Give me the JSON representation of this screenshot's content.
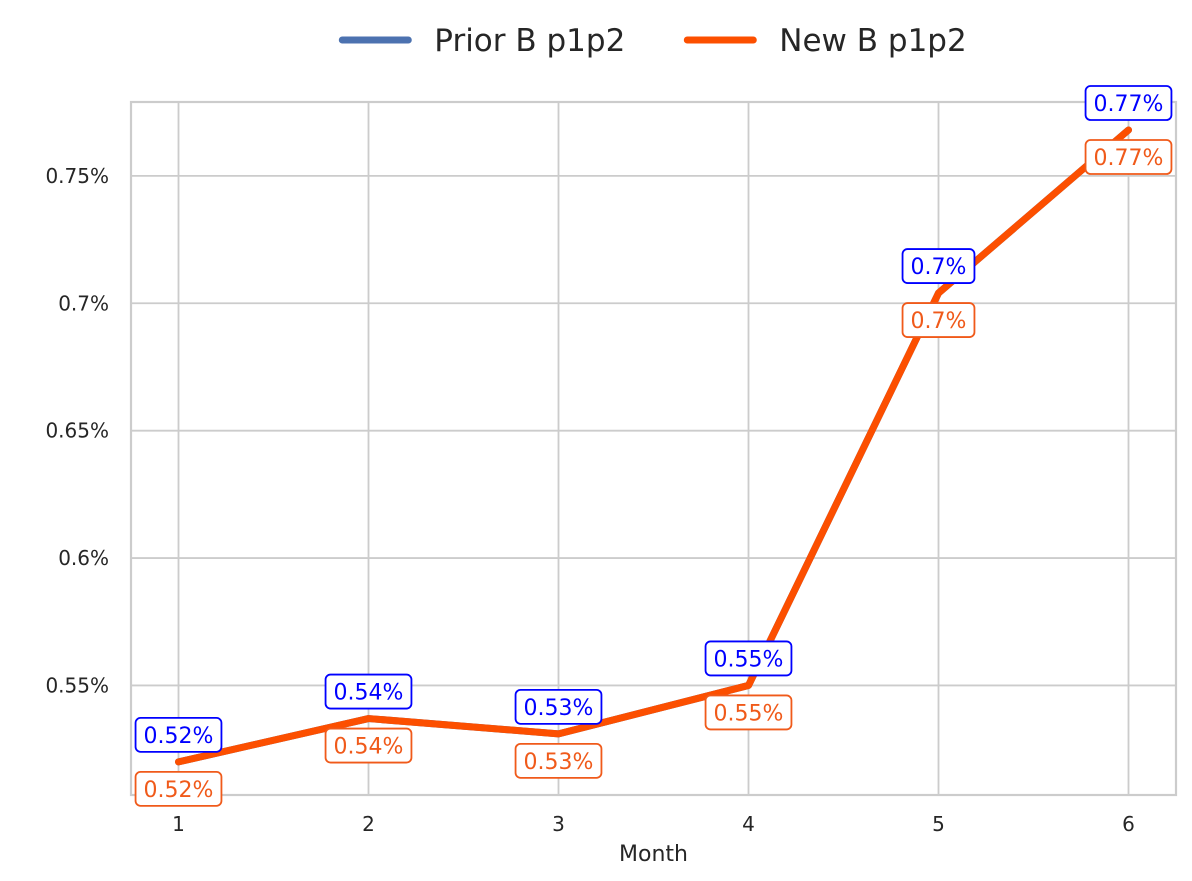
{
  "chart_data": {
    "type": "line",
    "title": "",
    "xlabel": "Month",
    "ylabel": "",
    "x": [
      1,
      2,
      3,
      4,
      5,
      6
    ],
    "x_tick_labels": [
      "1",
      "2",
      "3",
      "4",
      "5",
      "6"
    ],
    "y_ticks": [
      0.55,
      0.6,
      0.65,
      0.7,
      0.75
    ],
    "y_tick_labels": [
      "0.55%",
      "0.6%",
      "0.65%",
      "0.7%",
      "0.75%"
    ],
    "xlim": [
      0.75,
      6.25
    ],
    "ylim": [
      0.507,
      0.779
    ],
    "grid": true,
    "legend_position": "top-center",
    "series": [
      {
        "name": "Prior B p1p2",
        "values": [
          0.52,
          0.537,
          0.531,
          0.55,
          0.704,
          0.768
        ],
        "labels": [
          "0.52%",
          "0.54%",
          "0.53%",
          "0.55%",
          "0.7%",
          "0.77%"
        ],
        "color": "#4c72b0",
        "label_color": "#0000ff",
        "label_side": "above"
      },
      {
        "name": "New B p1p2",
        "values": [
          0.52,
          0.537,
          0.531,
          0.55,
          0.704,
          0.768
        ],
        "labels": [
          "0.52%",
          "0.54%",
          "0.53%",
          "0.55%",
          "0.7%",
          "0.77%"
        ],
        "color": "#fc4f00",
        "label_color": "#f05a1a",
        "label_side": "below"
      }
    ]
  }
}
